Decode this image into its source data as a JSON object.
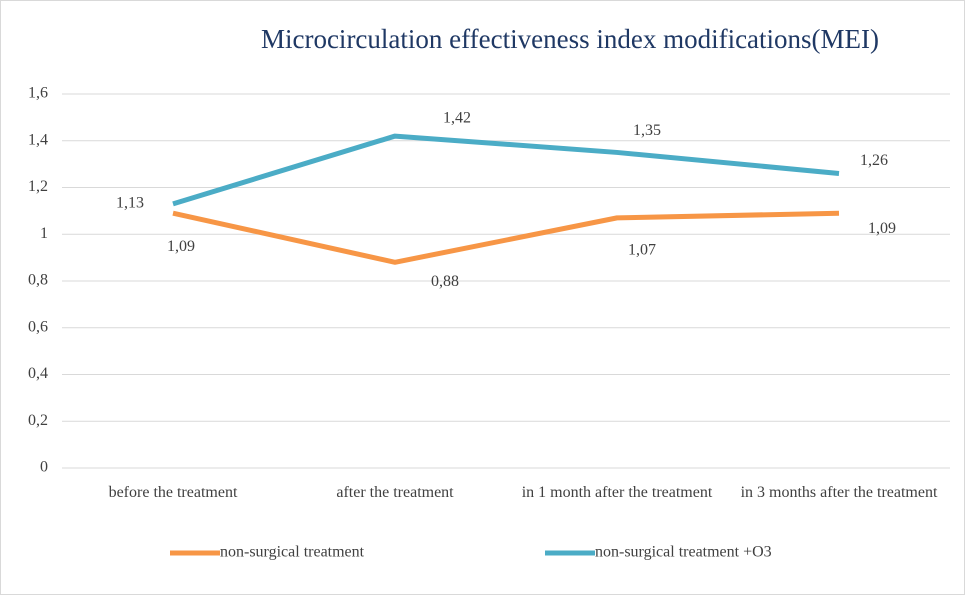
{
  "chart_data": {
    "type": "line",
    "title": "Microcirculation effectiveness index modifications(MEI)",
    "categories": [
      "before the treatment",
      "after the treatment",
      "in 1 month after the treatment",
      "in 3 months after the treatment"
    ],
    "series": [
      {
        "name": "non-surgical treatment",
        "color": "#f79646",
        "values": [
          1.09,
          0.88,
          1.07,
          1.09
        ],
        "value_labels": [
          "1,09",
          "0,88",
          "1,07",
          "1,09"
        ]
      },
      {
        "name": "non-surgical treatment +O3",
        "color": "#4bacc6",
        "values": [
          1.13,
          1.42,
          1.35,
          1.26
        ],
        "value_labels": [
          "1,13",
          "1,42",
          "1,35",
          "1,26"
        ]
      }
    ],
    "ylim": [
      0,
      1.6
    ],
    "yticks": [
      0,
      {
        "value": 0.2,
        "label": "0,2"
      },
      {
        "value": 0.4,
        "label": "0,4"
      },
      {
        "value": 0.6,
        "label": "0,6"
      },
      {
        "value": 0.8,
        "label": "0,8"
      },
      1,
      {
        "value": 1.2,
        "label": "1,2"
      },
      {
        "value": 1.4,
        "label": "1,4"
      },
      {
        "value": 1.6,
        "label": "1,6"
      }
    ],
    "grid": true,
    "legend": "bottom"
  }
}
